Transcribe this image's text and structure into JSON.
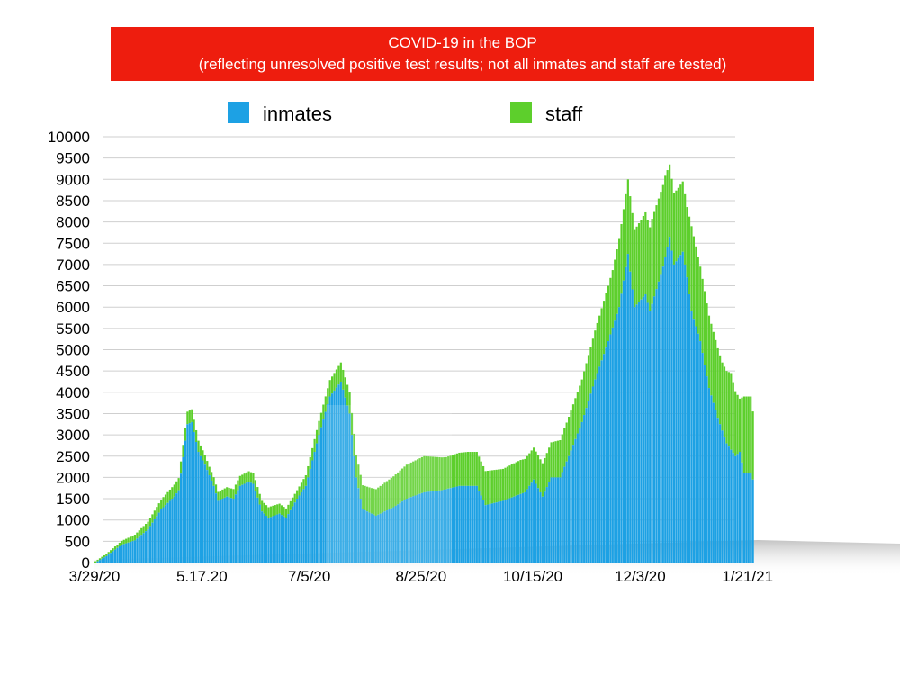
{
  "chart_data": {
    "type": "bar",
    "stacked": true,
    "title_line1": "COVID-19 in the BOP",
    "title_line2": "(reflecting unresolved positive test results; not all inmates and staff are tested)",
    "ylim": [
      0,
      10000
    ],
    "y_ticks": [
      0,
      500,
      1000,
      1500,
      2000,
      2500,
      3000,
      3500,
      4000,
      4500,
      5000,
      5500,
      6000,
      6500,
      7000,
      7500,
      8000,
      8500,
      9000,
      9500,
      10000
    ],
    "y_tick_labels": [
      "0",
      "500",
      "1000",
      "1500",
      "2000",
      "2500",
      "3000",
      "3500",
      "4000",
      "4500",
      "5000",
      "5500",
      "6000",
      "6500",
      "7000",
      "7500",
      "8000",
      "8500",
      "9000",
      "9500",
      "10000"
    ],
    "x_tick_labels": [
      "3/29/20",
      "5.17.20",
      "7/5/20",
      "8/25/20",
      "10/15/20",
      "12/3/20",
      "1/21/21"
    ],
    "x_tick_index": [
      0,
      49,
      98,
      149,
      200,
      249,
      298
    ],
    "grid": true,
    "legend_position": "top",
    "colors": {
      "inmates": "#1da1e4",
      "staff": "#5dcf2c",
      "title_bg": "#ee1d0e"
    },
    "series": [
      {
        "name": "inmates",
        "keyframes": [
          [
            0,
            0
          ],
          [
            5,
            150
          ],
          [
            12,
            420
          ],
          [
            18,
            520
          ],
          [
            24,
            780
          ],
          [
            30,
            1250
          ],
          [
            36,
            1550
          ],
          [
            38,
            1700
          ],
          [
            42,
            3250
          ],
          [
            44,
            3300
          ],
          [
            47,
            2600
          ],
          [
            50,
            2300
          ],
          [
            54,
            1800
          ],
          [
            56,
            1450
          ],
          [
            60,
            1550
          ],
          [
            63,
            1500
          ],
          [
            66,
            1800
          ],
          [
            70,
            1900
          ],
          [
            72,
            1850
          ],
          [
            76,
            1200
          ],
          [
            79,
            1050
          ],
          [
            84,
            1150
          ],
          [
            87,
            1050
          ],
          [
            92,
            1500
          ],
          [
            96,
            1800
          ],
          [
            102,
            3000
          ],
          [
            107,
            3900
          ],
          [
            112,
            4250
          ],
          [
            116,
            3500
          ],
          [
            119,
            2000
          ],
          [
            122,
            1250
          ],
          [
            128,
            1100
          ],
          [
            136,
            1300
          ],
          [
            142,
            1500
          ],
          [
            150,
            1650
          ],
          [
            158,
            1700
          ],
          [
            166,
            1800
          ],
          [
            174,
            1800
          ],
          [
            178,
            1350
          ],
          [
            186,
            1450
          ],
          [
            196,
            1650
          ],
          [
            200,
            1950
          ],
          [
            204,
            1550
          ],
          [
            208,
            2000
          ],
          [
            212,
            2000
          ],
          [
            216,
            2500
          ],
          [
            222,
            3300
          ],
          [
            228,
            4300
          ],
          [
            234,
            5200
          ],
          [
            239,
            6000
          ],
          [
            243,
            7250
          ],
          [
            246,
            6000
          ],
          [
            251,
            6300
          ],
          [
            253,
            5900
          ],
          [
            257,
            6600
          ],
          [
            259,
            6950
          ],
          [
            262,
            7650
          ],
          [
            264,
            7000
          ],
          [
            268,
            7300
          ],
          [
            270,
            6700
          ],
          [
            272,
            5900
          ],
          [
            276,
            5200
          ],
          [
            280,
            4100
          ],
          [
            284,
            3400
          ],
          [
            288,
            2800
          ],
          [
            292,
            2500
          ],
          [
            294,
            2600
          ],
          [
            296,
            2100
          ],
          [
            299,
            2100
          ],
          [
            300,
            1950
          ]
        ]
      },
      {
        "name": "staff",
        "keyframes": [
          [
            0,
            30
          ],
          [
            12,
            90
          ],
          [
            24,
            180
          ],
          [
            36,
            280
          ],
          [
            44,
            300
          ],
          [
            52,
            200
          ],
          [
            60,
            220
          ],
          [
            72,
            250
          ],
          [
            80,
            250
          ],
          [
            92,
            200
          ],
          [
            100,
            300
          ],
          [
            108,
            400
          ],
          [
            112,
            450
          ],
          [
            116,
            500
          ],
          [
            120,
            550
          ],
          [
            126,
            600
          ],
          [
            134,
            700
          ],
          [
            142,
            800
          ],
          [
            150,
            850
          ],
          [
            160,
            750
          ],
          [
            170,
            800
          ],
          [
            178,
            800
          ],
          [
            186,
            750
          ],
          [
            194,
            800
          ],
          [
            200,
            750
          ],
          [
            206,
            800
          ],
          [
            214,
            900
          ],
          [
            222,
            1000
          ],
          [
            230,
            1200
          ],
          [
            236,
            1350
          ],
          [
            239,
            1600
          ],
          [
            243,
            1750
          ],
          [
            248,
            1850
          ],
          [
            254,
            2000
          ],
          [
            260,
            1900
          ],
          [
            262,
            1700
          ],
          [
            266,
            1650
          ],
          [
            270,
            1650
          ],
          [
            272,
            2000
          ],
          [
            276,
            1750
          ],
          [
            280,
            1700
          ],
          [
            286,
            1600
          ],
          [
            290,
            1800
          ],
          [
            294,
            1250
          ],
          [
            296,
            1800
          ],
          [
            299,
            1800
          ],
          [
            300,
            1600
          ]
        ]
      }
    ]
  }
}
